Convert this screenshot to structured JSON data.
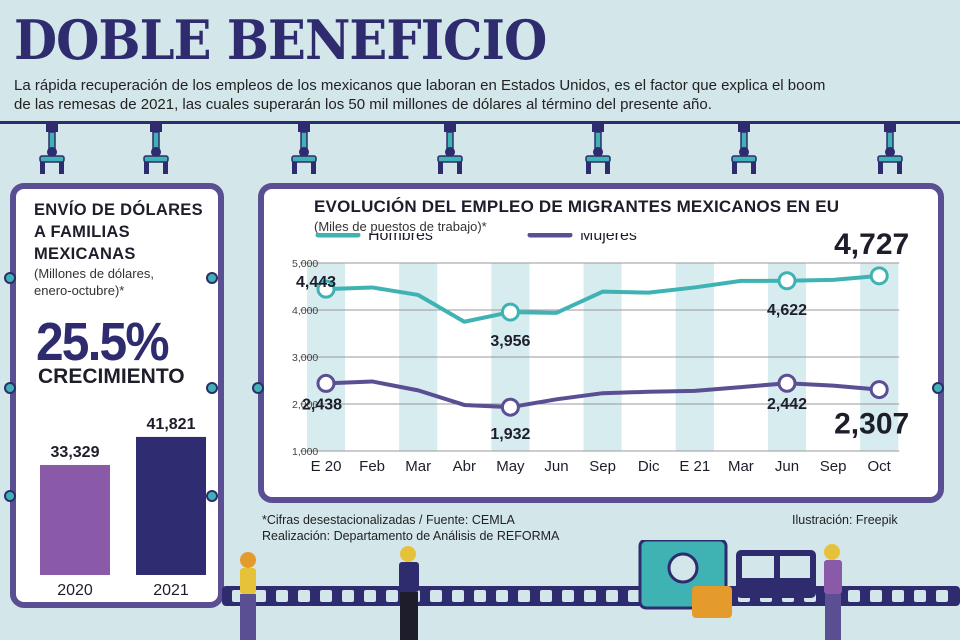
{
  "header": {
    "title": "DOBLE BENEFICIO",
    "intro_line1": "La rápida recuperación de los empleos de los mexicanos que laboran en Estados Unidos, es el factor que explica el boom",
    "intro_line2": "de las remesas de 2021, las cuales superarán los 50 mil millones de dólares al término del presente año."
  },
  "left_panel": {
    "title_line1": "ENVÍO DE DÓLARES",
    "title_line2": "A FAMILIAS",
    "title_line3": "MEXICANAS",
    "subtitle_line1": "(Millones de dólares,",
    "subtitle_line2": "enero-octubre)*",
    "growth_value": "25.5%",
    "growth_label": "CRECIMIENTO"
  },
  "right_panel": {
    "title": "EVOLUCIÓN DEL EMPLEO DE MIGRANTES MEXICANOS EN EU",
    "subtitle": "(Miles de puestos de trabajo)*"
  },
  "footer": {
    "note": "*Cifras desestacionalizadas / Fuente: CEMLA",
    "credit": "Realización: Departamento de Análisis de REFORMA",
    "illustration": "Ilustración: Freepik"
  },
  "colors": {
    "navy": "#2e2b6e",
    "purple": "#5a4f92",
    "teal": "#3fb3b3",
    "bar2020": "#8a5aa8",
    "bar2021": "#302c72"
  },
  "chart_data": [
    {
      "type": "bar",
      "title": "ENVÍO DE DÓLARES A FAMILIAS MEXICANAS",
      "categories": [
        "2020",
        "2021"
      ],
      "values": [
        33329,
        41821
      ],
      "labels": [
        "33,329",
        "41,821"
      ],
      "ylabel": "Millones de dólares",
      "ylim": [
        0,
        45000
      ]
    },
    {
      "type": "line",
      "title": "EVOLUCIÓN DEL EMPLEO DE MIGRANTES MEXICANOS EN EU",
      "ylabel": "Miles de puestos de trabajo",
      "ylim": [
        1000,
        5000
      ],
      "yticks": [
        "1,000",
        "2,000",
        "3,000",
        "4,000",
        "5,000"
      ],
      "ytick_values": [
        1000,
        2000,
        3000,
        4000,
        5000
      ],
      "x_labels": [
        "E 20",
        "Feb",
        "Mar",
        "Abr",
        "May",
        "Jun",
        "Sep",
        "Dic",
        "E 21",
        "Mar",
        "Jun",
        "Sep",
        "Oct"
      ],
      "series": [
        {
          "name": "Hombres",
          "values": [
            4443,
            4480,
            4320,
            3750,
            3956,
            3940,
            4390,
            4370,
            4480,
            4620,
            4622,
            4640,
            4727
          ],
          "highlights": [
            {
              "index": 0,
              "label": "4,443"
            },
            {
              "index": 4,
              "label": "3,956"
            },
            {
              "index": 10,
              "label": "4,622"
            },
            {
              "index": 12,
              "label": "4,727"
            }
          ]
        },
        {
          "name": "Mujeres",
          "values": [
            2438,
            2480,
            2290,
            1980,
            1932,
            2100,
            2230,
            2260,
            2280,
            2360,
            2442,
            2390,
            2307
          ],
          "highlights": [
            {
              "index": 0,
              "label": "2,438"
            },
            {
              "index": 4,
              "label": "1,932"
            },
            {
              "index": 10,
              "label": "2,442"
            },
            {
              "index": 12,
              "label": "2,307"
            }
          ]
        }
      ]
    }
  ]
}
